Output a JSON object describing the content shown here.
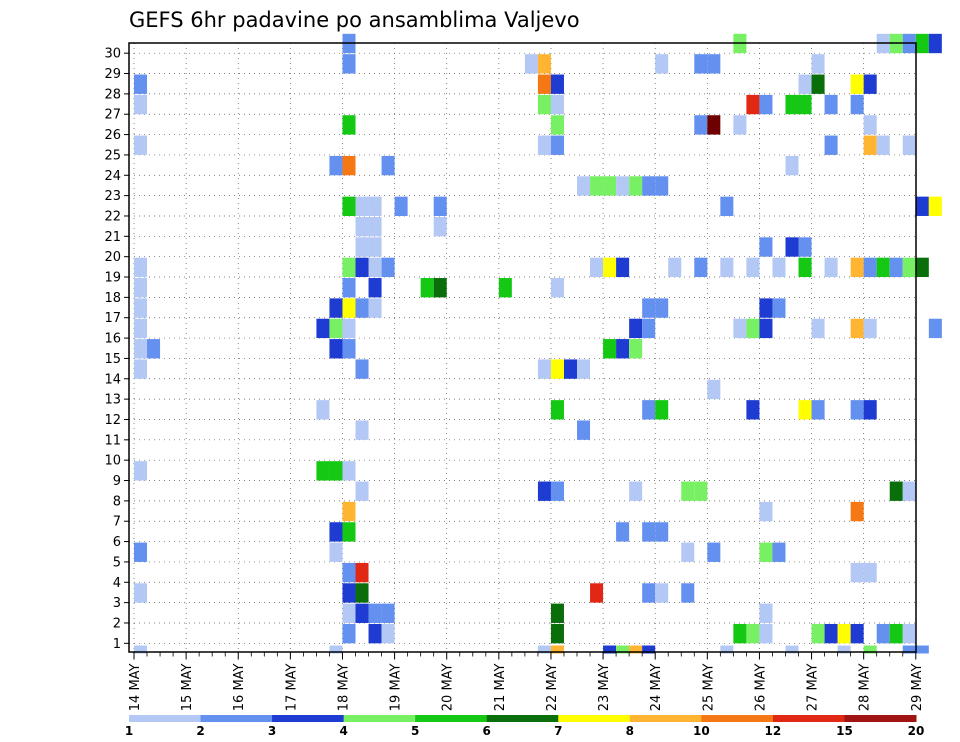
{
  "chart_data": {
    "type": "heatmap",
    "title": "GEFS 6hr padavine po ansamblima Valjevo",
    "y_categories": [
      "1",
      "2",
      "3",
      "4",
      "5",
      "6",
      "7",
      "8",
      "9",
      "10",
      "11",
      "12",
      "13",
      "14",
      "15",
      "16",
      "17",
      "18",
      "19",
      "20",
      "21",
      "22",
      "23",
      "24",
      "25",
      "26",
      "27",
      "28",
      "29",
      "30"
    ],
    "x_tick_labels": [
      "14 MAY",
      "15 MAY",
      "16 MAY",
      "17 MAY",
      "18 MAY",
      "19 MAY",
      "20 MAY",
      "21 MAY",
      "22 MAY",
      "23 MAY",
      "24 MAY",
      "25 MAY",
      "26 MAY",
      "27 MAY",
      "28 MAY",
      "29 MAY"
    ],
    "x_step_hours": 6,
    "legend": {
      "labels": [
        "1",
        "2",
        "3",
        "4",
        "5",
        "6",
        "7",
        "8",
        "10",
        "12",
        "15",
        "20"
      ],
      "colors": [
        "#b4c8f5",
        "#6490f0",
        "#1e3cd2",
        "#78f064",
        "#14c814",
        "#0a6e0a",
        "#ffff00",
        "#ffb432",
        "#f57814",
        "#e12814",
        "#a01414",
        "#6e0000"
      ]
    },
    "color_by_class": {
      "1": "#b4c8f5",
      "2": "#6490f0",
      "3": "#1e3cd2",
      "4": "#78f064",
      "5": "#14c814",
      "6": "#0a6e0a",
      "7": "#ffff00",
      "8": "#ffb432",
      "9": "#f57814",
      "10": "#e12814",
      "11": "#6e0000"
    },
    "cells": [
      [
        30,
        16,
        2
      ],
      [
        30,
        46,
        4
      ],
      [
        30,
        57,
        1
      ],
      [
        30,
        58,
        4
      ],
      [
        30,
        59,
        2
      ],
      [
        30,
        60,
        5
      ],
      [
        30,
        61,
        3
      ],
      [
        29,
        16,
        2
      ],
      [
        29,
        30,
        1
      ],
      [
        29,
        31,
        8
      ],
      [
        29,
        40,
        1
      ],
      [
        29,
        43,
        2
      ],
      [
        29,
        44,
        2
      ],
      [
        29,
        52,
        1
      ],
      [
        28,
        0,
        2
      ],
      [
        28,
        31,
        9
      ],
      [
        28,
        32,
        3
      ],
      [
        28,
        51,
        1
      ],
      [
        28,
        52,
        6
      ],
      [
        28,
        55,
        7
      ],
      [
        28,
        56,
        3
      ],
      [
        27,
        0,
        1
      ],
      [
        27,
        31,
        4
      ],
      [
        27,
        32,
        1
      ],
      [
        27,
        47,
        10
      ],
      [
        27,
        48,
        2
      ],
      [
        27,
        50,
        5
      ],
      [
        27,
        51,
        5
      ],
      [
        27,
        53,
        2
      ],
      [
        27,
        55,
        2
      ],
      [
        26,
        16,
        5
      ],
      [
        26,
        32,
        4
      ],
      [
        26,
        43,
        2
      ],
      [
        26,
        44,
        11
      ],
      [
        26,
        46,
        1
      ],
      [
        26,
        56,
        1
      ],
      [
        25,
        0,
        1
      ],
      [
        25,
        31,
        1
      ],
      [
        25,
        32,
        2
      ],
      [
        25,
        53,
        2
      ],
      [
        25,
        56,
        8
      ],
      [
        25,
        57,
        1
      ],
      [
        25,
        59,
        1
      ],
      [
        24,
        15,
        2
      ],
      [
        24,
        16,
        9
      ],
      [
        24,
        19,
        2
      ],
      [
        24,
        50,
        1
      ],
      [
        23,
        34,
        1
      ],
      [
        23,
        35,
        4
      ],
      [
        23,
        36,
        4
      ],
      [
        23,
        37,
        1
      ],
      [
        23,
        38,
        4
      ],
      [
        23,
        39,
        2
      ],
      [
        23,
        40,
        2
      ],
      [
        22,
        16,
        5
      ],
      [
        22,
        17,
        1
      ],
      [
        22,
        18,
        1
      ],
      [
        22,
        20,
        2
      ],
      [
        22,
        23,
        2
      ],
      [
        22,
        45,
        2
      ],
      [
        22,
        60,
        3
      ],
      [
        22,
        61,
        7
      ],
      [
        21,
        17,
        1
      ],
      [
        21,
        18,
        1
      ],
      [
        21,
        23,
        1
      ],
      [
        20,
        17,
        1
      ],
      [
        20,
        18,
        1
      ],
      [
        20,
        48,
        2
      ],
      [
        20,
        50,
        3
      ],
      [
        20,
        51,
        2
      ],
      [
        19,
        0,
        1
      ],
      [
        19,
        16,
        4
      ],
      [
        19,
        18,
        1
      ],
      [
        19,
        17,
        3
      ],
      [
        19,
        19,
        2
      ],
      [
        19,
        35,
        1
      ],
      [
        19,
        36,
        7
      ],
      [
        19,
        37,
        3
      ],
      [
        19,
        41,
        1
      ],
      [
        19,
        43,
        2
      ],
      [
        19,
        45,
        1
      ],
      [
        19,
        47,
        1
      ],
      [
        19,
        49,
        1
      ],
      [
        19,
        51,
        5
      ],
      [
        19,
        53,
        1
      ],
      [
        19,
        55,
        8
      ],
      [
        19,
        56,
        2
      ],
      [
        19,
        57,
        5
      ],
      [
        19,
        58,
        2
      ],
      [
        19,
        59,
        4
      ],
      [
        19,
        60,
        6
      ],
      [
        18,
        0,
        1
      ],
      [
        18,
        16,
        2
      ],
      [
        18,
        18,
        3
      ],
      [
        18,
        22,
        5
      ],
      [
        18,
        23,
        6
      ],
      [
        18,
        28,
        5
      ],
      [
        18,
        32,
        1
      ],
      [
        17,
        0,
        1
      ],
      [
        17,
        15,
        3
      ],
      [
        17,
        16,
        7
      ],
      [
        17,
        17,
        2
      ],
      [
        17,
        18,
        1
      ],
      [
        17,
        39,
        2
      ],
      [
        17,
        40,
        2
      ],
      [
        17,
        48,
        3
      ],
      [
        17,
        49,
        2
      ],
      [
        16,
        0,
        1
      ],
      [
        16,
        14,
        3
      ],
      [
        16,
        15,
        4
      ],
      [
        16,
        16,
        1
      ],
      [
        16,
        38,
        3
      ],
      [
        16,
        39,
        2
      ],
      [
        16,
        46,
        1
      ],
      [
        16,
        47,
        4
      ],
      [
        16,
        48,
        3
      ],
      [
        16,
        52,
        1
      ],
      [
        16,
        55,
        8
      ],
      [
        16,
        56,
        1
      ],
      [
        16,
        61,
        2
      ],
      [
        15,
        0,
        1
      ],
      [
        15,
        1,
        2
      ],
      [
        15,
        15,
        3
      ],
      [
        15,
        16,
        2
      ],
      [
        15,
        36,
        5
      ],
      [
        15,
        37,
        3
      ],
      [
        15,
        38,
        4
      ],
      [
        14,
        0,
        1
      ],
      [
        14,
        17,
        2
      ],
      [
        14,
        31,
        1
      ],
      [
        14,
        32,
        7
      ],
      [
        14,
        33,
        3
      ],
      [
        14,
        34,
        1
      ],
      [
        13,
        44,
        1
      ],
      [
        12,
        14,
        1
      ],
      [
        12,
        32,
        5
      ],
      [
        12,
        39,
        2
      ],
      [
        12,
        40,
        5
      ],
      [
        12,
        47,
        3
      ],
      [
        12,
        51,
        7
      ],
      [
        12,
        52,
        2
      ],
      [
        12,
        55,
        2
      ],
      [
        12,
        56,
        3
      ],
      [
        11,
        17,
        1
      ],
      [
        11,
        34,
        2
      ],
      [
        9,
        0,
        1
      ],
      [
        9,
        14,
        5
      ],
      [
        9,
        15,
        5
      ],
      [
        9,
        16,
        1
      ],
      [
        8,
        17,
        1
      ],
      [
        8,
        31,
        3
      ],
      [
        8,
        32,
        2
      ],
      [
        8,
        38,
        1
      ],
      [
        8,
        42,
        4
      ],
      [
        8,
        43,
        4
      ],
      [
        8,
        58,
        6
      ],
      [
        8,
        59,
        1
      ],
      [
        7,
        16,
        8
      ],
      [
        7,
        48,
        1
      ],
      [
        7,
        55,
        9
      ],
      [
        6,
        15,
        3
      ],
      [
        6,
        16,
        5
      ],
      [
        6,
        37,
        2
      ],
      [
        6,
        39,
        2
      ],
      [
        6,
        40,
        2
      ],
      [
        5,
        0,
        2
      ],
      [
        5,
        15,
        1
      ],
      [
        5,
        42,
        1
      ],
      [
        5,
        44,
        2
      ],
      [
        5,
        48,
        4
      ],
      [
        5,
        49,
        2
      ],
      [
        4,
        16,
        2
      ],
      [
        4,
        17,
        10
      ],
      [
        4,
        55,
        1
      ],
      [
        4,
        56,
        1
      ],
      [
        3,
        0,
        1
      ],
      [
        3,
        16,
        3
      ],
      [
        3,
        17,
        6
      ],
      [
        3,
        35,
        10
      ],
      [
        3,
        39,
        2
      ],
      [
        3,
        40,
        1
      ],
      [
        3,
        42,
        2
      ],
      [
        2,
        16,
        1
      ],
      [
        2,
        17,
        3
      ],
      [
        2,
        18,
        2
      ],
      [
        2,
        19,
        2
      ],
      [
        2,
        32,
        6
      ],
      [
        2,
        48,
        1
      ],
      [
        1,
        16,
        2
      ],
      [
        1,
        18,
        3
      ],
      [
        1,
        19,
        1
      ],
      [
        1,
        32,
        6
      ],
      [
        1,
        46,
        5
      ],
      [
        1,
        47,
        4
      ],
      [
        1,
        48,
        1
      ],
      [
        1,
        52,
        4
      ],
      [
        1,
        53,
        3
      ],
      [
        1,
        54,
        7
      ],
      [
        1,
        55,
        3
      ],
      [
        1,
        57,
        2
      ],
      [
        1,
        58,
        5
      ],
      [
        1,
        59,
        1
      ]
    ],
    "bottom_strip": [
      [
        0,
        1
      ],
      [
        15,
        1
      ],
      [
        31,
        1
      ],
      [
        32,
        8
      ],
      [
        36,
        3
      ],
      [
        37,
        4
      ],
      [
        38,
        8
      ],
      [
        39,
        3
      ],
      [
        45,
        1
      ],
      [
        50,
        1
      ],
      [
        54,
        1
      ],
      [
        56,
        4
      ],
      [
        59,
        2
      ],
      [
        60,
        2
      ]
    ],
    "grid": true
  }
}
